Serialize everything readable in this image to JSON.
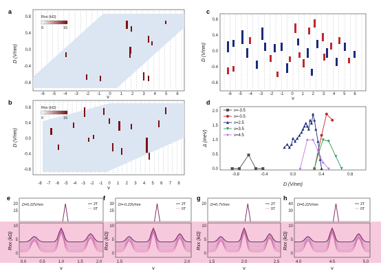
{
  "panels": {
    "a": {
      "label": "a",
      "ylabel": "D (V/nm)",
      "xlabel": "ν",
      "yticks": [
        "0.8",
        "0.4",
        "0.0",
        "-0.4",
        "-0.8"
      ],
      "xticks": [
        "-6",
        "-5",
        "-4",
        "-3",
        "-2",
        "-1",
        "0",
        "1",
        "2",
        "3",
        "4",
        "5",
        "6"
      ],
      "colorbar": {
        "title": "Rxx (kΩ)",
        "min": "0",
        "max": "15"
      }
    },
    "b": {
      "label": "b",
      "ylabel": "D (V/nm)",
      "xlabel": "ν",
      "yticks": [
        "0.8",
        "0.4",
        "0.0",
        "-0.4",
        "-0.8"
      ],
      "xticks": [
        "-8",
        "-7",
        "-6",
        "-5",
        "-4",
        "-3",
        "-2",
        "-1",
        "0",
        "1",
        "2",
        "3",
        "4",
        "5",
        "6",
        "7",
        "8"
      ],
      "colorbar": {
        "title": "Rxx (kΩ)",
        "min": "0",
        "max": "15"
      }
    },
    "c": {
      "label": "c",
      "ylabel": "D (V/nm)",
      "xlabel": "ν",
      "yticks": [
        "0.8",
        "0.4",
        "0.0",
        "-0.4",
        "-0.8"
      ],
      "xticks": [
        "-6",
        "-5",
        "-4",
        "-3",
        "-2",
        "-1",
        "0",
        "1",
        "2",
        "3",
        "4",
        "5",
        "6"
      ]
    },
    "d": {
      "label": "d",
      "ylabel": "Δ (meV)",
      "xlabel": "D (V/nm)",
      "yticks": [
        "2.0",
        "1.5",
        "1.0",
        "0.5",
        "0.0"
      ],
      "xticks": [
        "-0.8",
        "-0.4",
        "0.0",
        "0.4",
        "0.8"
      ]
    },
    "e": {
      "label": "e",
      "annotation": "D=0.22V/nm",
      "ylabel": "Rxx (kΩ)",
      "xlabel": "ν",
      "xticks": [
        "0.0",
        "0.5",
        "1.0",
        "1.5",
        "2.0"
      ],
      "yticks_top": [
        "20",
        "15"
      ],
      "yticks_bottom": [
        "10",
        "5",
        "0"
      ],
      "legend": [
        "2T",
        "0T"
      ]
    },
    "f": {
      "label": "f",
      "annotation": "D=-0.23V/nm",
      "ylabel": "Rxx (kΩ)",
      "xlabel": "ν",
      "xticks": [
        "1.5",
        "2.0"
      ],
      "yticks_top": [
        "30",
        "25"
      ],
      "yticks_bottom": [
        "10",
        "5",
        "0"
      ],
      "legend": [
        "2T",
        "0T"
      ]
    },
    "g": {
      "label": "g",
      "annotation": "D=0.7V/nm",
      "ylabel": "Rxx (kΩ)",
      "xlabel": "ν",
      "xticks": [
        "1.5",
        "2.0",
        "2.5"
      ],
      "yticks_top": [
        "20"
      ],
      "yticks_bottom": [
        "10",
        "5",
        "0"
      ],
      "legend": [
        "2T",
        "0T"
      ]
    },
    "h": {
      "label": "h",
      "annotation": "D=0.22V/nm",
      "ylabel": "Rxx (kΩ)",
      "xlabel": "ν",
      "xticks": [
        "4.0",
        "4.5",
        "5.0"
      ],
      "yticks_top": [
        "40",
        "30"
      ],
      "yticks_bottom": [
        "10",
        "5",
        "0"
      ],
      "legend": [
        "2T",
        "0T"
      ]
    }
  },
  "colors": {
    "map_bg": "#dce6f2",
    "map_peak": "#7a1010",
    "red_bar": "#c0282d",
    "blue_bar": "#1a2a7a",
    "pink_bg": "#f7c9dd",
    "trace_dark": "#7a1f5c"
  },
  "chart_data": {
    "type": "line",
    "title": "",
    "xlabel": "D (V/nm)",
    "ylabel": "Δ (meV)",
    "xlim": [
      -1.0,
      1.0
    ],
    "ylim": [
      0.0,
      2.0
    ],
    "series": [
      {
        "name": "ν=-3.5",
        "color": "#4d4d4d",
        "marker": "square",
        "x": [
          -0.85,
          -0.75,
          -0.62,
          -0.52,
          -0.42
        ],
        "y": [
          0.0,
          0.0,
          0.45,
          0.0,
          0.0
        ]
      },
      {
        "name": "ν=-0.5",
        "color": "#c0282d",
        "marker": "circle",
        "x": [
          0.3,
          0.4,
          0.47,
          0.55
        ],
        "y": [
          0.0,
          1.1,
          1.8,
          1.6
        ]
      },
      {
        "name": "ν=2.5",
        "color": "#1a2a7a",
        "marker": "triangle",
        "x": [
          -0.12,
          -0.08,
          -0.05,
          -0.02,
          0.0,
          0.03,
          0.06,
          0.09,
          0.12,
          0.14,
          0.16,
          0.18,
          0.2,
          0.22,
          0.24,
          0.26,
          0.28,
          0.3,
          0.32,
          0.35,
          0.38,
          0.4
        ],
        "y": [
          0.7,
          0.8,
          0.7,
          0.8,
          1.0,
          0.9,
          1.0,
          1.1,
          1.2,
          1.3,
          1.4,
          1.5,
          1.4,
          1.3,
          1.6,
          1.5,
          1.8,
          1.6,
          1.3,
          0.9,
          0.3,
          0.0
        ]
      },
      {
        "name": "ν=3.5",
        "color": "#2e9b5a",
        "marker": "down-triangle",
        "x": [
          0.3,
          0.35,
          0.42,
          0.5,
          0.6,
          0.68
        ],
        "y": [
          0.0,
          0.45,
          0.95,
          0.9,
          0.4,
          0.0
        ]
      },
      {
        "name": "ν=4.5",
        "color": "#c27ad9",
        "marker": "diamond",
        "x": [
          0.1,
          0.2,
          0.28,
          0.35,
          0.42,
          0.5
        ],
        "y": [
          0.0,
          0.95,
          0.95,
          0.6,
          0.2,
          0.0
        ]
      }
    ]
  }
}
